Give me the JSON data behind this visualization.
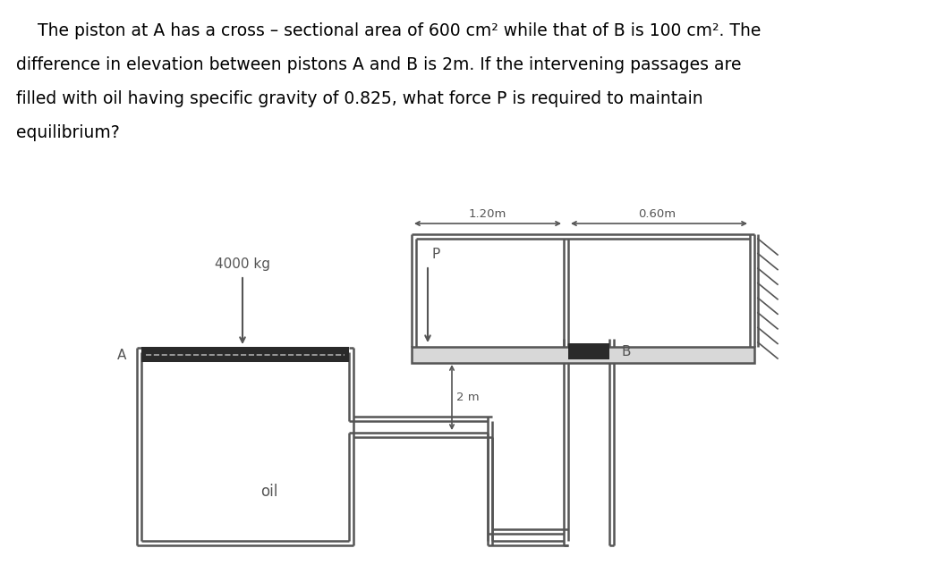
{
  "bg_color": "#ffffff",
  "line_color": "#555555",
  "piston_color": "#2a2a2a",
  "label_4000": "4000 kg",
  "label_oil": "oil",
  "label_A": "A",
  "label_B": "B",
  "label_P": "P",
  "label_2m": "2 m",
  "label_1p20m": "1.20m",
  "label_0p60m": "0.60m",
  "text_line1": "    The piston at A has a cross – sectional area of 600 cm² while that of B is 100 cm². The",
  "text_line2": "difference in elevation between pistons A and B is 2m. If the intervening passages are",
  "text_line3": "filled with oil having specific gravity of 0.825, what force P is required to maintain",
  "text_line4": "equilibrium?"
}
